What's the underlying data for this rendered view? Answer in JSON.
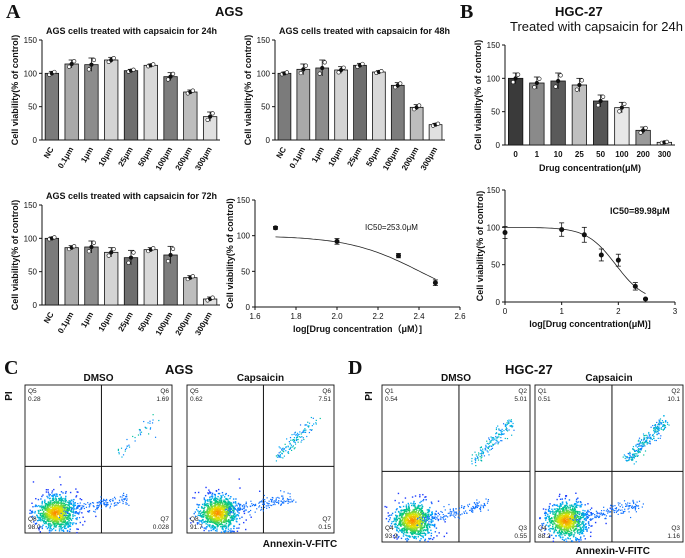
{
  "panels": {
    "A": {
      "letter": "A",
      "title": "AGS"
    },
    "B": {
      "letter": "B",
      "title": "HGC-27",
      "subtitle": "Treated with capsaicin for 24h"
    },
    "C": {
      "letter": "C",
      "title": "AGS"
    },
    "D": {
      "letter": "D",
      "title": "HGC-27"
    }
  },
  "chart_data": [
    {
      "id": "ags24",
      "type": "bar",
      "title": "AGS cells treated with capsaicin for 24h",
      "ylabel": "Cell viability(% of control)",
      "xlabel": "",
      "categories": [
        "NC",
        "0.1μm",
        "1μm",
        "10μm",
        "25μm",
        "50μm",
        "100μm",
        "200μm",
        "300μm"
      ],
      "values": [
        100,
        114,
        113,
        120,
        104,
        112,
        95,
        72,
        35
      ],
      "errors": [
        3,
        6,
        10,
        4,
        2,
        2,
        6,
        3,
        7
      ],
      "ylim": [
        0,
        150
      ],
      "yticks": [
        0,
        50,
        100,
        150
      ]
    },
    {
      "id": "ags48",
      "type": "bar",
      "title": "AGS cells treated with capsaicin for 48h",
      "ylabel": "Cell viability(% of control)",
      "xlabel": "",
      "categories": [
        "NC",
        "0.1μm",
        "1μm",
        "10μm",
        "25μm",
        "50μm",
        "100μm",
        "200μm",
        "300μm"
      ],
      "values": [
        100,
        106,
        108,
        105,
        112,
        102,
        82,
        49,
        23
      ],
      "errors": [
        2,
        8,
        12,
        5,
        3,
        2,
        4,
        4,
        2
      ],
      "ylim": [
        0,
        150
      ],
      "yticks": [
        0,
        50,
        100,
        150
      ]
    },
    {
      "id": "ags72",
      "type": "bar",
      "title": "AGS cells treated with capsaicin for 72h",
      "ylabel": "Cell viability(% of control)",
      "xlabel": "",
      "categories": [
        "NC",
        "0.1μm",
        "1μm",
        "10μm",
        "25μm",
        "50μm",
        "100μm",
        "200μm",
        "300μm"
      ],
      "values": [
        100,
        86,
        87,
        79,
        71,
        83,
        75,
        41,
        9
      ],
      "errors": [
        2,
        3,
        9,
        7,
        11,
        3,
        13,
        3,
        3
      ],
      "ylim": [
        0,
        150
      ],
      "yticks": [
        0,
        50,
        100,
        150
      ]
    },
    {
      "id": "agsic50",
      "type": "scatter",
      "title": "",
      "annotation": "IC50=253.0μM",
      "ylabel": "Cell viability(% of control)",
      "xlabel": "log[Drug concentration（μM）]",
      "x": [
        1.7,
        2.0,
        2.3,
        2.48
      ],
      "y": [
        111,
        92,
        72,
        34
      ],
      "errors": [
        2,
        4,
        3,
        4
      ],
      "curve": {
        "top": 100,
        "bottom": 0,
        "logic50": 2.403,
        "hill": 2.5
      },
      "xlim": [
        1.6,
        2.6
      ],
      "xticks": [
        "1.6",
        "1.8",
        "2.0",
        "2.2",
        "2.4",
        "2.6"
      ],
      "ylim": [
        0,
        150
      ],
      "yticks": [
        0,
        50,
        100,
        150
      ]
    },
    {
      "id": "hgc24",
      "type": "bar",
      "title": "",
      "ylabel": "Cell viability(% of control)",
      "xlabel": "Drug concentration(μM)",
      "categories": [
        "0",
        "1",
        "10",
        "25",
        "50",
        "100",
        "200",
        "300"
      ],
      "values": [
        100,
        93,
        96,
        90,
        66,
        56,
        22,
        4
      ],
      "errors": [
        8,
        9,
        12,
        10,
        9,
        8,
        5,
        1
      ],
      "ylim": [
        0,
        150
      ],
      "yticks": [
        0,
        50,
        100,
        150
      ]
    },
    {
      "id": "hgcic50",
      "type": "scatter",
      "title": "",
      "annotation": "IC50=89.98μM",
      "ylabel": "Cell viability(% of control)",
      "xlabel": "log[Drug concentration(μM)]",
      "x": [
        0,
        1.0,
        1.4,
        1.7,
        2.0,
        2.3,
        2.48
      ],
      "y": [
        93,
        97,
        90,
        63,
        56,
        21,
        4
      ],
      "errors": [
        8,
        9,
        10,
        8,
        8,
        5,
        1
      ],
      "curve": {
        "top": 100,
        "bottom": 0,
        "logic50": 1.954,
        "hill": 1.7
      },
      "xlim": [
        0,
        3
      ],
      "xticks": [
        "0",
        "1",
        "2",
        "3"
      ],
      "ylim": [
        0,
        150
      ],
      "yticks": [
        0,
        50,
        100,
        150
      ]
    }
  ],
  "flow": {
    "ylabel": "PI",
    "xlabel": "Annexin-V-FITC",
    "ags": [
      {
        "title": "DMSO",
        "q_ul": "Q5",
        "v_ul": "0.28",
        "q_ur": "Q6",
        "v_ur": "1.69",
        "q_ll": "Q8",
        "v_ll": "98.0",
        "q_lr": "Q7",
        "v_lr": "0.028"
      },
      {
        "title": "Capsaicin",
        "q_ul": "Q5",
        "v_ul": "0.62",
        "q_ur": "Q6",
        "v_ur": "7.51",
        "q_ll": "Q8",
        "v_ll": "91.7",
        "q_lr": "Q7",
        "v_lr": "0.15"
      }
    ],
    "hgc": [
      {
        "title": "DMSO",
        "q_ul": "Q1",
        "v_ul": "0.54",
        "q_ur": "Q2",
        "v_ur": "5.01",
        "q_ll": "Q4",
        "v_ll": "93.9",
        "q_lr": "Q3",
        "v_lr": "0.55"
      },
      {
        "title": "Capsaicin",
        "q_ul": "Q1",
        "v_ul": "0.51",
        "q_ur": "Q2",
        "v_ur": "10.1",
        "q_ll": "Q4",
        "v_ll": "88.2",
        "q_lr": "Q3",
        "v_lr": "1.16"
      }
    ]
  },
  "colors": {
    "bars": [
      "#7b7b7b",
      "#a9a9a9",
      "#8c8c8c",
      "#d4d4d4",
      "#6e6e6e",
      "#d9d9d9",
      "#7d7d7d",
      "#bdbdbd",
      "#e0e0e0"
    ],
    "hgc_bars": [
      "#3a3a3a",
      "#8a8a8a",
      "#5a5a5a",
      "#c0c0c0",
      "#555555",
      "#e8e8e8",
      "#9a9a9a",
      "#dcdcdc"
    ],
    "density_low": "#1f3cff",
    "density_high": "#ff7a00",
    "axis": "#111111"
  }
}
